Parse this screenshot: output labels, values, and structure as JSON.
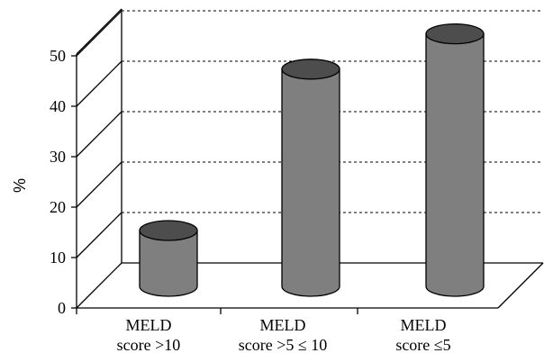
{
  "chart_data": {
    "type": "bar",
    "style": "3d-cylinder",
    "title": "",
    "xlabel": "",
    "ylabel": "%",
    "ylim": [
      0,
      50
    ],
    "yticks": [
      0,
      10,
      20,
      30,
      40,
      50
    ],
    "grid": "horizontal-dashed",
    "categories": [
      [
        "MELD",
        "score >10"
      ],
      [
        "MELD",
        "score >5 ≤ 10"
      ],
      [
        "MELD",
        "score ≤5"
      ]
    ],
    "values": [
      10,
      42,
      49
    ],
    "bar_color": "#7f7f7f",
    "bar_top_color": "#4d4d4d"
  }
}
